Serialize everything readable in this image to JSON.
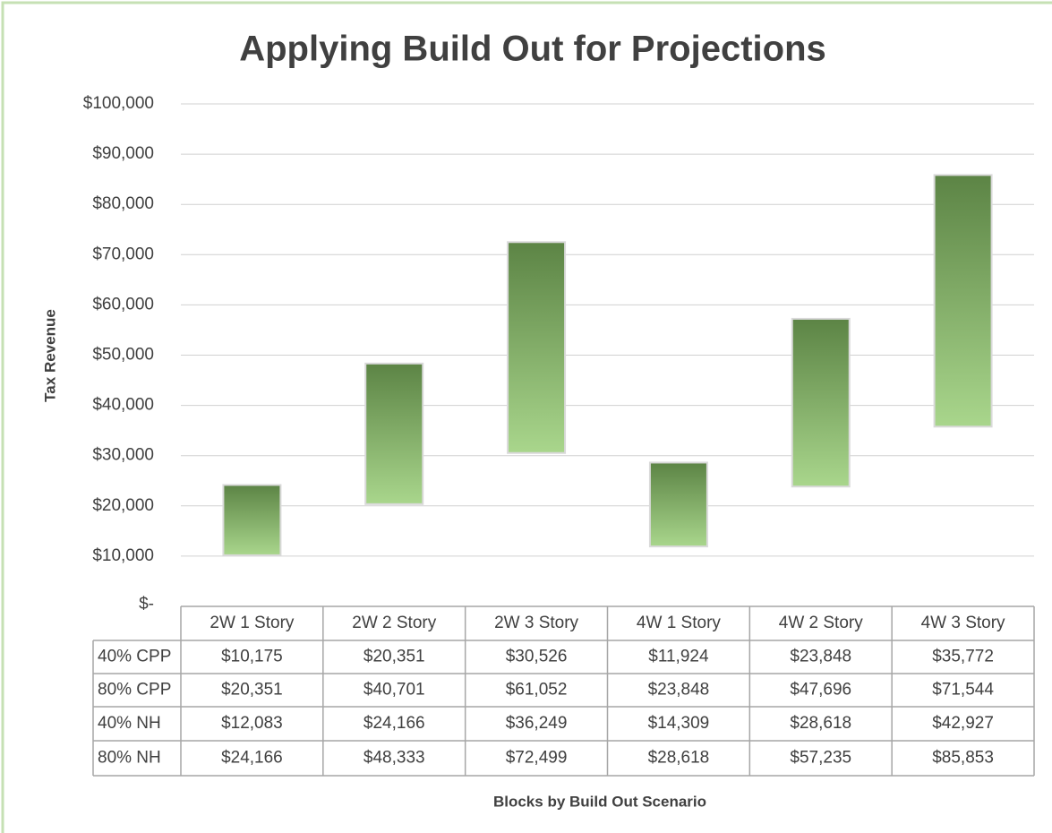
{
  "chart_data": {
    "type": "bar",
    "title": "Applying Build Out for Projections",
    "x_label": "Blocks by Build Out Scenario",
    "y_label": "Tax Revenue",
    "categories": [
      "2W 1 Story",
      "2W 2 Story",
      "2W 3 Story",
      "4W 1 Story",
      "4W 2 Story",
      "4W 3 Story"
    ],
    "series": [
      {
        "name": "40% CPP",
        "values": [
          10175,
          20351,
          30526,
          11924,
          23848,
          35772
        ],
        "value_labels": [
          "$10,175",
          "$20,351",
          "$30,526",
          "$11,924",
          "$23,848",
          "$35,772"
        ]
      },
      {
        "name": "80% CPP",
        "values": [
          20351,
          40701,
          61052,
          23848,
          47696,
          71544
        ],
        "value_labels": [
          "$20,351",
          "$40,701",
          "$61,052",
          "$23,848",
          "$47,696",
          "$71,544"
        ]
      },
      {
        "name": "40% NH",
        "values": [
          12083,
          24166,
          36249,
          14309,
          28618,
          42927
        ],
        "value_labels": [
          "$12,083",
          "$24,166",
          "$36,249",
          "$14,309",
          "$28,618",
          "$42,927"
        ]
      },
      {
        "name": "80% NH",
        "values": [
          24166,
          48333,
          72499,
          28618,
          57235,
          85853
        ],
        "value_labels": [
          "$24,166",
          "$48,333",
          "$72,499",
          "$28,618",
          "$57,235",
          "$85,853"
        ]
      }
    ],
    "gradient": [
      "#5c8445",
      "#a9d68c"
    ],
    "ylim": [
      0,
      100000
    ],
    "yticks": [
      {
        "value": 0,
        "label": "$-"
      },
      {
        "value": 10000,
        "label": "$10,000"
      },
      {
        "value": 20000,
        "label": "$20,000"
      },
      {
        "value": 30000,
        "label": "$30,000"
      },
      {
        "value": 40000,
        "label": "$40,000"
      },
      {
        "value": 50000,
        "label": "$50,000"
      },
      {
        "value": 60000,
        "label": "$60,000"
      },
      {
        "value": 70000,
        "label": "$70,000"
      },
      {
        "value": 80000,
        "label": "$80,000"
      },
      {
        "value": 90000,
        "label": "$90,000"
      },
      {
        "value": 100000,
        "label": "$100,000"
      }
    ],
    "grid": true,
    "data_table": true
  }
}
